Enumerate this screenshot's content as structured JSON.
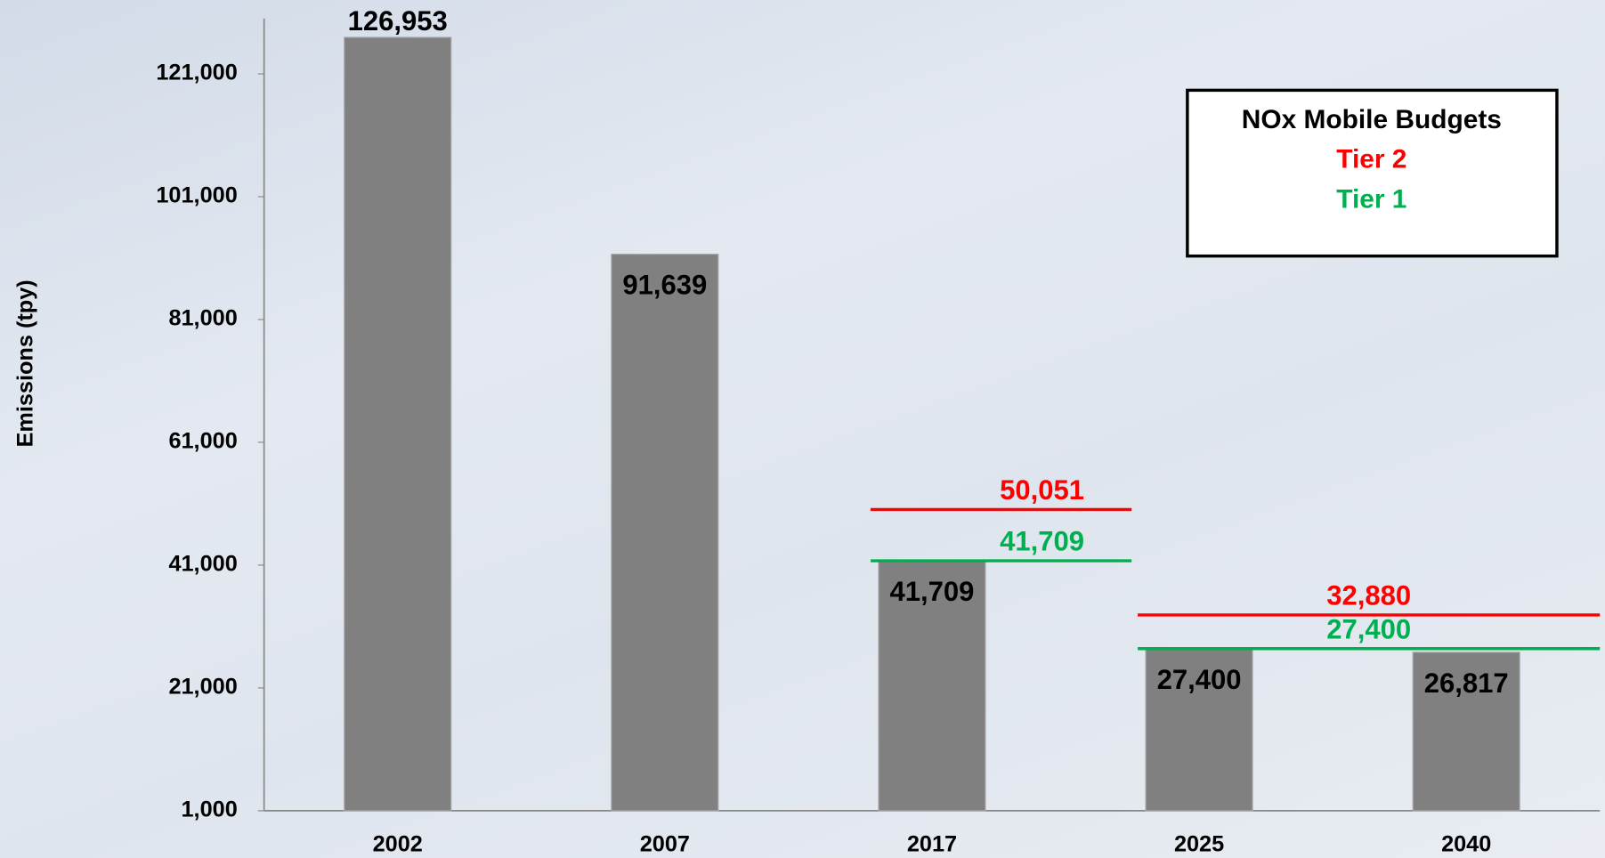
{
  "chart_data": {
    "type": "bar",
    "y_label": "Emissions (tpy)",
    "categories": [
      "2002",
      "2007",
      "2017",
      "2025",
      "2040"
    ],
    "values": [
      126953,
      91639,
      41709,
      27400,
      26817
    ],
    "value_labels": [
      "126,953",
      "91,639",
      "41,709",
      "27,400",
      "26,817"
    ],
    "color": "#808080",
    "ylim": [
      1000,
      130000
    ],
    "yticks": [
      {
        "value": 1000,
        "label": "1,000"
      },
      {
        "value": 21000,
        "label": "21,000"
      },
      {
        "value": 41000,
        "label": "41,000"
      },
      {
        "value": 61000,
        "label": "61,000"
      },
      {
        "value": 81000,
        "label": "81,000"
      },
      {
        "value": 101000,
        "label": "101,000"
      },
      {
        "value": 121000,
        "label": "121,000"
      }
    ],
    "legend_title": "NOx Mobile Budgets",
    "budgets": [
      {
        "name": "Tier 2",
        "color": "#ff0000",
        "values": [
          null,
          null,
          50051,
          32880,
          null
        ],
        "value_labels": [
          null,
          null,
          "50,051",
          "32,880",
          null
        ]
      },
      {
        "name": "Tier 1",
        "color": "#00b050",
        "values": [
          null,
          null,
          41709,
          27400,
          null
        ],
        "value_labels": [
          null,
          null,
          "41,709",
          "27,400",
          null
        ]
      }
    ]
  }
}
